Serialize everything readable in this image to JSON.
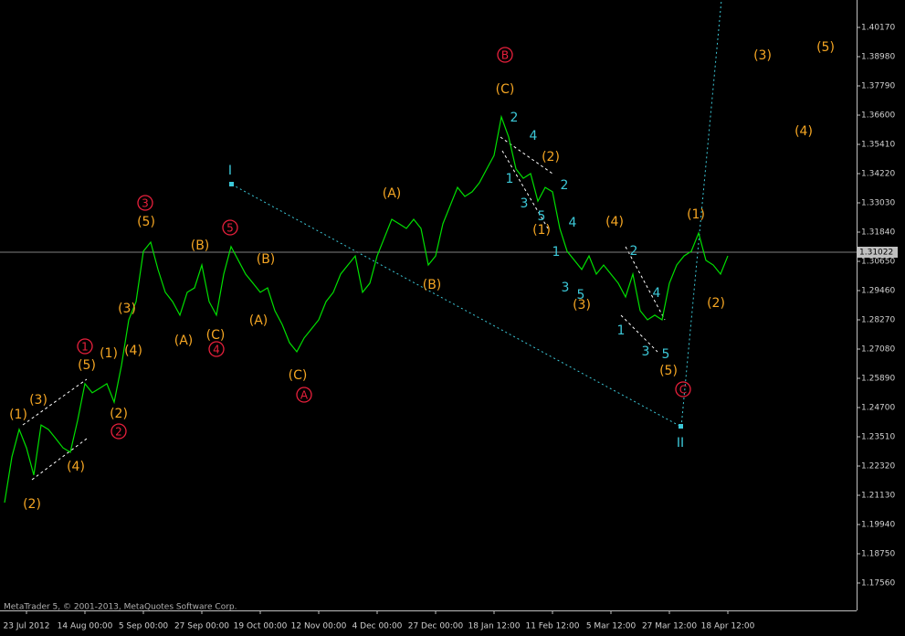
{
  "chart_data": {
    "type": "line",
    "color": "#00e000",
    "categories": [
      null,
      null,
      null,
      "23 Jul 2012",
      null,
      null,
      null,
      null,
      null,
      null,
      null,
      "14 Aug 00:00",
      null,
      null,
      null,
      null,
      null,
      null,
      null,
      "5 Sep 00:00",
      null,
      null,
      null,
      null,
      null,
      null,
      null,
      "27 Sep 00:00",
      null,
      null,
      null,
      null,
      null,
      null,
      null,
      "19 Oct 00:00",
      null,
      null,
      null,
      null,
      null,
      null,
      null,
      "12 Nov 00:00",
      null,
      null,
      null,
      null,
      null,
      null,
      null,
      "4 Dec 00:00",
      null,
      null,
      null,
      null,
      null,
      null,
      null,
      "27 Dec 00:00",
      null,
      null,
      null,
      null,
      null,
      null,
      null,
      "18 Jan 12:00",
      null,
      null,
      null,
      null,
      null,
      null,
      null,
      "11 Feb 12:00",
      null,
      null,
      null,
      null,
      null,
      null,
      null,
      "5 Mar 12:00",
      null,
      null,
      null,
      null,
      null,
      null,
      null,
      "27 Mar 12:00",
      null,
      null,
      null,
      null,
      null,
      null,
      null,
      "18 Apr 12:00"
    ],
    "values": [
      1.2083,
      1.2269,
      1.2381,
      1.2306,
      1.2195,
      1.2399,
      1.2381,
      1.2344,
      1.2306,
      1.2288,
      1.2418,
      1.2567,
      1.253,
      1.2548,
      1.2567,
      1.2492,
      1.2641,
      1.2827,
      1.2901,
      1.3106,
      1.3143,
      1.3032,
      1.2939,
      1.2901,
      1.2846,
      1.2939,
      1.2957,
      1.305,
      1.2901,
      1.2846,
      1.3013,
      1.3125,
      1.3069,
      1.3013,
      1.2976,
      1.2939,
      1.2957,
      1.2864,
      1.2808,
      1.2734,
      1.2697,
      1.2753,
      1.279,
      1.2827,
      1.2901,
      1.2939,
      1.3013,
      1.305,
      1.3087,
      1.2939,
      1.2976,
      1.3087,
      1.3162,
      1.3236,
      1.3218,
      1.3199,
      1.3236,
      1.3199,
      1.305,
      1.3087,
      1.3218,
      1.3292,
      1.3366,
      1.3329,
      1.3348,
      1.3385,
      1.3441,
      1.3496,
      1.3653,
      1.3571,
      1.3441,
      1.3403,
      1.3422,
      1.331,
      1.3366,
      1.3348,
      1.3199,
      1.3106,
      1.3069,
      1.3032,
      1.3087,
      1.3013,
      1.305,
      1.3013,
      1.2976,
      1.292,
      1.3013,
      1.2864,
      1.2827,
      1.2846,
      1.2827,
      1.2976,
      1.305,
      1.3087,
      1.3106,
      1.318,
      1.3069,
      1.305,
      1.3013,
      1.3087
    ],
    "ylim": [
      1.16444,
      1.41286
    ],
    "yticks": [
      {
        "value": 1.4017,
        "label": "1.40170"
      },
      {
        "value": 1.3898,
        "label": "1.38980"
      },
      {
        "value": 1.3779,
        "label": "1.37790"
      },
      {
        "value": 1.366,
        "label": "1.36600"
      },
      {
        "value": 1.3541,
        "label": "1.35410"
      },
      {
        "value": 1.3422,
        "label": "1.34220"
      },
      {
        "value": 1.3303,
        "label": "1.33030"
      },
      {
        "value": 1.3184,
        "label": "1.31840"
      },
      {
        "value": 1.3065,
        "label": "1.30650"
      },
      {
        "value": 1.2946,
        "label": "1.29460"
      },
      {
        "value": 1.2827,
        "label": "1.28270"
      },
      {
        "value": 1.2708,
        "label": "1.27080"
      },
      {
        "value": 1.2589,
        "label": "1.25890"
      },
      {
        "value": 1.247,
        "label": "1.24700"
      },
      {
        "value": 1.2351,
        "label": "1.23510"
      },
      {
        "value": 1.2232,
        "label": "1.22320"
      },
      {
        "value": 1.2113,
        "label": "1.21130"
      },
      {
        "value": 1.1994,
        "label": "1.19940"
      },
      {
        "value": 1.1875,
        "label": "1.18750"
      },
      {
        "value": 1.1756,
        "label": "1.17560"
      }
    ],
    "current_price": 1.31022,
    "copyright": "MetaTrader 5, © 2001-2013, MetaQuotes Software Corp.",
    "annotations": [
      {
        "text": "(1)",
        "color": "#f5a623"
      },
      {
        "text": "(3)",
        "color": "#f5a623"
      },
      {
        "text": "(2)",
        "color": "#f5a623"
      },
      {
        "text": "(4)",
        "color": "#f5a623"
      },
      {
        "text": "(5)",
        "color": "#f5a623"
      },
      {
        "text": "(1)",
        "color": "#f5a623"
      },
      {
        "text": "(2)",
        "color": "#f5a623"
      },
      {
        "text": "(3)",
        "color": "#f5a623"
      },
      {
        "text": "(4)",
        "color": "#f5a623"
      },
      {
        "text": "(5)",
        "color": "#f5a623"
      },
      {
        "text": "(B)",
        "color": "#f5a623"
      },
      {
        "text": "(C)",
        "color": "#f5a623"
      },
      {
        "text": "(A)",
        "color": "#f5a623"
      },
      {
        "text": "(B)",
        "color": "#f5a623"
      },
      {
        "text": "(A)",
        "color": "#f5a623"
      },
      {
        "text": "(C)",
        "color": "#f5a623"
      },
      {
        "text": "(A)",
        "color": "#f5a623"
      },
      {
        "text": "(B)",
        "color": "#f5a623"
      },
      {
        "text": "(C)",
        "color": "#f5a623"
      },
      {
        "text": "(2)",
        "color": "#f5a623"
      },
      {
        "text": "(1)",
        "color": "#f5a623"
      },
      {
        "text": "(3)",
        "color": "#f5a623"
      },
      {
        "text": "(4)",
        "color": "#f5a623"
      },
      {
        "text": "(5)",
        "color": "#f5a623"
      },
      {
        "text": "(1)",
        "color": "#f5a623"
      },
      {
        "text": "(2)",
        "color": "#f5a623"
      },
      {
        "text": "(3)",
        "color": "#f5a623"
      },
      {
        "text": "(4)",
        "color": "#f5a623"
      },
      {
        "text": "(5)",
        "color": "#f5a623"
      },
      {
        "text": "1",
        "color": "#e8203c"
      },
      {
        "text": "2",
        "color": "#e8203c"
      },
      {
        "text": "3",
        "color": "#e8203c"
      },
      {
        "text": "4",
        "color": "#e8203c"
      },
      {
        "text": "5",
        "color": "#e8203c"
      },
      {
        "text": "A",
        "color": "#e8203c"
      },
      {
        "text": "B",
        "color": "#e8203c"
      },
      {
        "text": "C",
        "color": "#e8203c"
      },
      {
        "text": "I",
        "color": "#3cc8d8"
      },
      {
        "text": "II",
        "color": "#3cc8d8"
      },
      {
        "text": "1",
        "color": "#3cc8d8"
      },
      {
        "text": "2",
        "color": "#3cc8d8"
      },
      {
        "text": "3",
        "color": "#3cc8d8"
      },
      {
        "text": "4",
        "color": "#3cc8d8"
      },
      {
        "text": "5",
        "color": "#3cc8d8"
      },
      {
        "text": "1",
        "color": "#3cc8d8"
      },
      {
        "text": "2",
        "color": "#3cc8d8"
      },
      {
        "text": "3",
        "color": "#3cc8d8"
      },
      {
        "text": "4",
        "color": "#3cc8d8"
      },
      {
        "text": "5",
        "color": "#3cc8d8"
      },
      {
        "text": "2",
        "color": "#3cc8d8"
      },
      {
        "text": "1",
        "color": "#3cc8d8"
      },
      {
        "text": "3",
        "color": "#3cc8d8"
      },
      {
        "text": "4",
        "color": "#3cc8d8"
      },
      {
        "text": "5",
        "color": "#3cc8d8"
      }
    ]
  }
}
